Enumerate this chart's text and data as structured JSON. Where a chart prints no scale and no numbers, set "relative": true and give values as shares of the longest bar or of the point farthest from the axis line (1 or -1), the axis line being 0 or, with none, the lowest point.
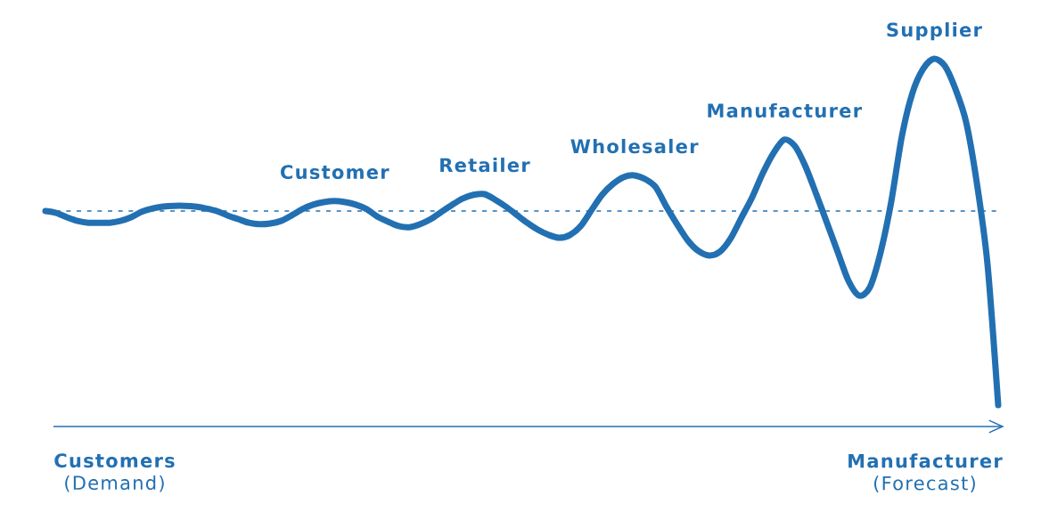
{
  "chart_data": {
    "type": "line",
    "relative": true,
    "color": "#2270b2",
    "categories": [
      null,
      null,
      null,
      null,
      null,
      null,
      null,
      null,
      null,
      null,
      null,
      null,
      null,
      null,
      null,
      null,
      null,
      null,
      null,
      null,
      null,
      null,
      null,
      null,
      null,
      null,
      null,
      null,
      null,
      null,
      null,
      null,
      null,
      null,
      null,
      null,
      null,
      null,
      null,
      null,
      null,
      null,
      null,
      null,
      null,
      null,
      null,
      null,
      null,
      null,
      null,
      null,
      null,
      null,
      null,
      null,
      null,
      null,
      null,
      null,
      null,
      null,
      null,
      null,
      null,
      null,
      null,
      null,
      null,
      null,
      null,
      null,
      null,
      null,
      null,
      null,
      null,
      null,
      null,
      null,
      null,
      null,
      null,
      null,
      null,
      null,
      null,
      null,
      null,
      null
    ],
    "values": [
      0.586,
      0.581,
      0.569,
      0.559,
      0.554,
      0.554,
      0.554,
      0.559,
      0.569,
      0.584,
      0.593,
      0.598,
      0.6,
      0.6,
      0.598,
      0.593,
      0.586,
      0.574,
      0.564,
      0.554,
      0.55,
      0.552,
      0.559,
      0.574,
      0.591,
      0.603,
      0.61,
      0.613,
      0.61,
      0.603,
      0.591,
      0.571,
      0.557,
      0.545,
      0.542,
      0.55,
      0.564,
      0.584,
      0.603,
      0.62,
      0.63,
      0.632,
      0.617,
      0.598,
      0.576,
      0.554,
      0.535,
      0.521,
      0.513,
      0.521,
      0.545,
      0.588,
      0.63,
      0.659,
      0.678,
      0.683,
      0.673,
      0.651,
      0.598,
      0.55,
      0.506,
      0.477,
      0.465,
      0.475,
      0.511,
      0.567,
      0.622,
      0.688,
      0.743,
      0.78,
      0.763,
      0.707,
      0.632,
      0.554,
      0.475,
      0.397,
      0.356,
      0.378,
      0.472,
      0.61,
      0.789,
      0.908,
      0.973,
      1,
      0.981,
      0.918,
      0.828,
      0.663,
      0.441,
      0.058
    ],
    "ref_lines": [
      {
        "axis": "y",
        "value": 0.586,
        "line_style": "dashed",
        "color": "#2270b2"
      }
    ],
    "annotations": [
      {
        "text": "Customer",
        "y": 0.613
      },
      {
        "text": "Retailer",
        "y": 0.632
      },
      {
        "text": "Wholesaler",
        "y": 0.683
      },
      {
        "text": "Manufacturer",
        "y": 0.78
      },
      {
        "text": "Supplier",
        "y": 1
      },
      "**Customers** (Demand)",
      "**Manufacturer** (Forecast)"
    ]
  }
}
